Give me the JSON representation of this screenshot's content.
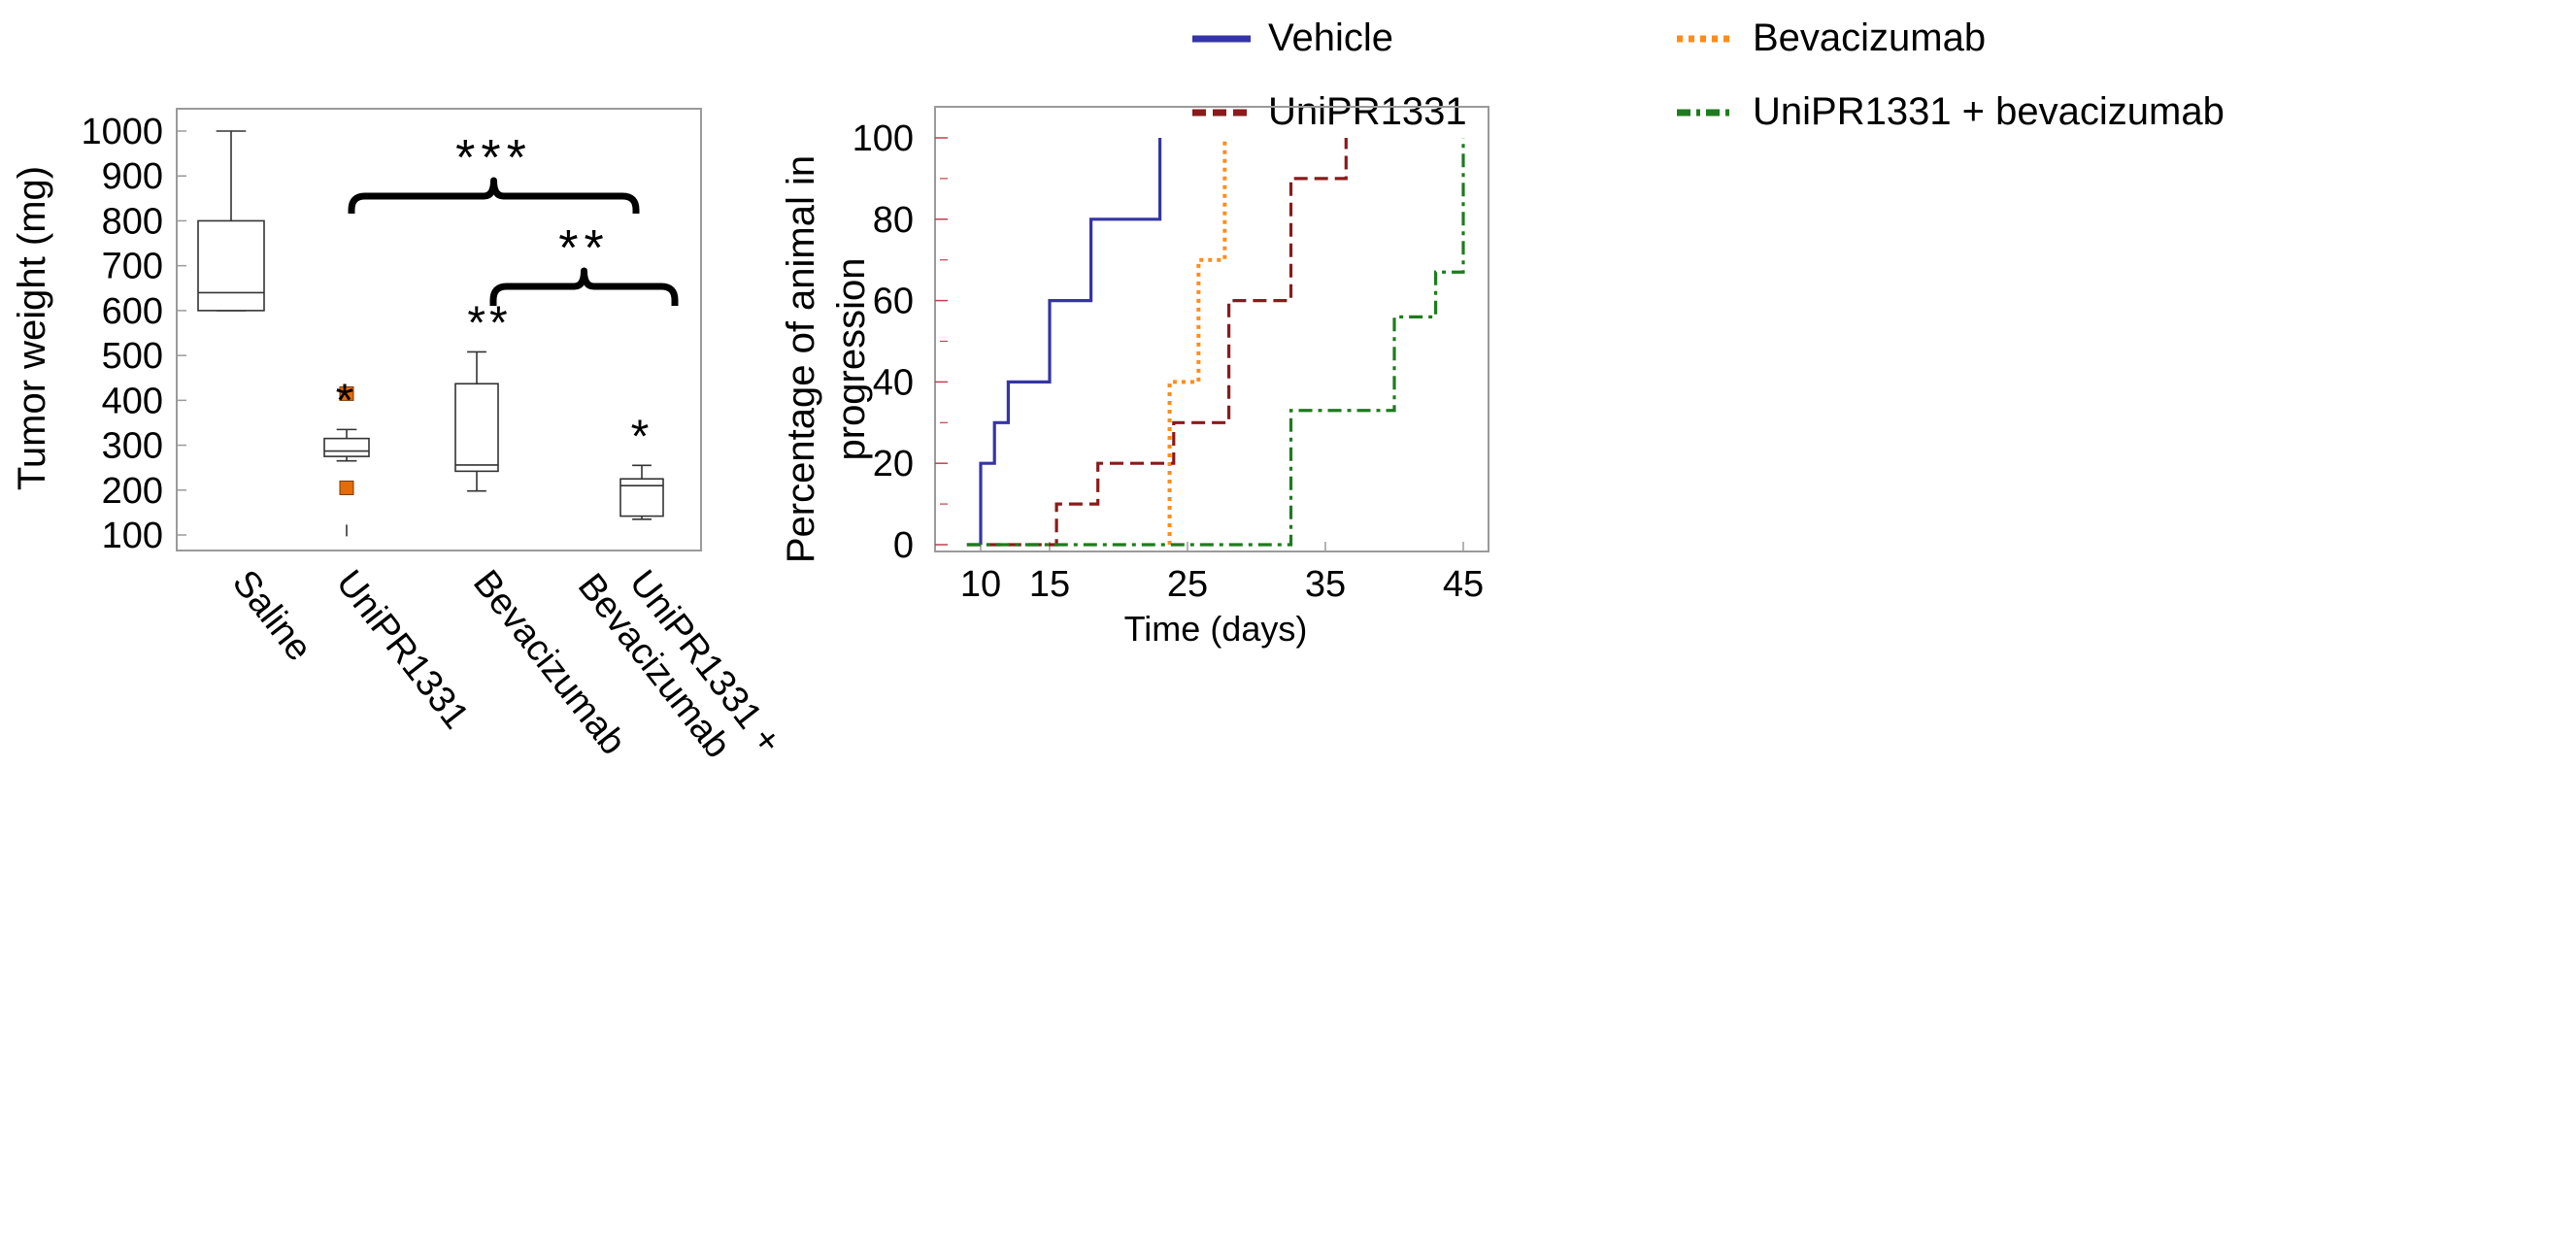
{
  "chart_data": [
    {
      "type": "box",
      "title": "",
      "ylabel": "Tumor weight (mg)",
      "xlabel": "",
      "ylim": [
        80,
        1040
      ],
      "yticks": [
        100,
        200,
        300,
        400,
        500,
        600,
        700,
        800,
        900,
        1000
      ],
      "categories": [
        "Saline",
        "UniPR1331",
        "Bevacizumab",
        "UniPR1331 +\nBevacizumab"
      ],
      "boxes": [
        {
          "category": "Saline",
          "min": 600,
          "q1": 600,
          "median": 640,
          "q3": 800,
          "max": 1000,
          "outliers": [],
          "annotation": ""
        },
        {
          "category": "UniPR1331",
          "min": 265,
          "q1": 275,
          "median": 287,
          "q3": 315,
          "max": 335,
          "outliers": [
            415,
            205
          ],
          "low_mark": 110,
          "annotation": "*"
        },
        {
          "category": "Bevacizumab",
          "min": 198,
          "q1": 242,
          "median": 256,
          "q3": 437,
          "max": 508,
          "outliers": [],
          "annotation": "**"
        },
        {
          "category": "UniPR1331 +\nBevacizumab",
          "min": 135,
          "q1": 142,
          "median": 210,
          "q3": 225,
          "max": 255,
          "outliers": [],
          "annotation": "*"
        }
      ],
      "comparisons": [
        {
          "from": "UniPR1331",
          "to": "UniPR1331 +\nBevacizumab",
          "label": "***"
        },
        {
          "from": "Bevacizumab",
          "to": "UniPR1331 +\nBevacizumab",
          "label": "**"
        }
      ],
      "outlier_color": "#E46C0A"
    },
    {
      "type": "line",
      "title": "",
      "xlabel": "Time (days)",
      "ylabel": "Percentage of animal in progression",
      "ylabel_lines": [
        "Percentage of animal in",
        "progression"
      ],
      "xlim": [
        7,
        47
      ],
      "ylim": [
        0,
        104
      ],
      "xticks": [
        10,
        15,
        25,
        35,
        45
      ],
      "yticks": [
        0,
        20,
        40,
        60,
        80,
        100
      ],
      "legend_position": "top",
      "series": [
        {
          "name": "Vehicle",
          "color": "#3535A6",
          "dash": "solid",
          "x": [
            10,
            10,
            11,
            11,
            12,
            12,
            15,
            15,
            18,
            18,
            23,
            23
          ],
          "y": [
            0,
            20,
            20,
            30,
            30,
            40,
            40,
            60,
            60,
            80,
            80,
            100
          ]
        },
        {
          "name": "Bevacizumab",
          "color": "#FF8C1A",
          "dash": "dot",
          "x": [
            23.7,
            23.7,
            25.8,
            25.8,
            27.7,
            27.7
          ],
          "y": [
            0,
            40,
            40,
            70,
            70,
            100
          ]
        },
        {
          "name": "UniPR1331",
          "color": "#8B1A1A",
          "dash": "dash",
          "x": [
            9,
            15.5,
            15.5,
            18.5,
            18.5,
            24,
            24,
            28,
            28,
            32.5,
            32.5,
            36.5,
            36.5
          ],
          "y": [
            0,
            0,
            10,
            10,
            20,
            20,
            30,
            30,
            60,
            60,
            90,
            90,
            100
          ]
        },
        {
          "name": "UniPR1331 + bevacizumab",
          "color": "#1E7B1E",
          "dash": "dashdot",
          "x": [
            9,
            32.5,
            32.5,
            40,
            40,
            43,
            43,
            45,
            45
          ],
          "y": [
            0,
            0,
            33,
            33,
            56,
            56,
            67,
            67,
            100
          ]
        }
      ]
    }
  ]
}
